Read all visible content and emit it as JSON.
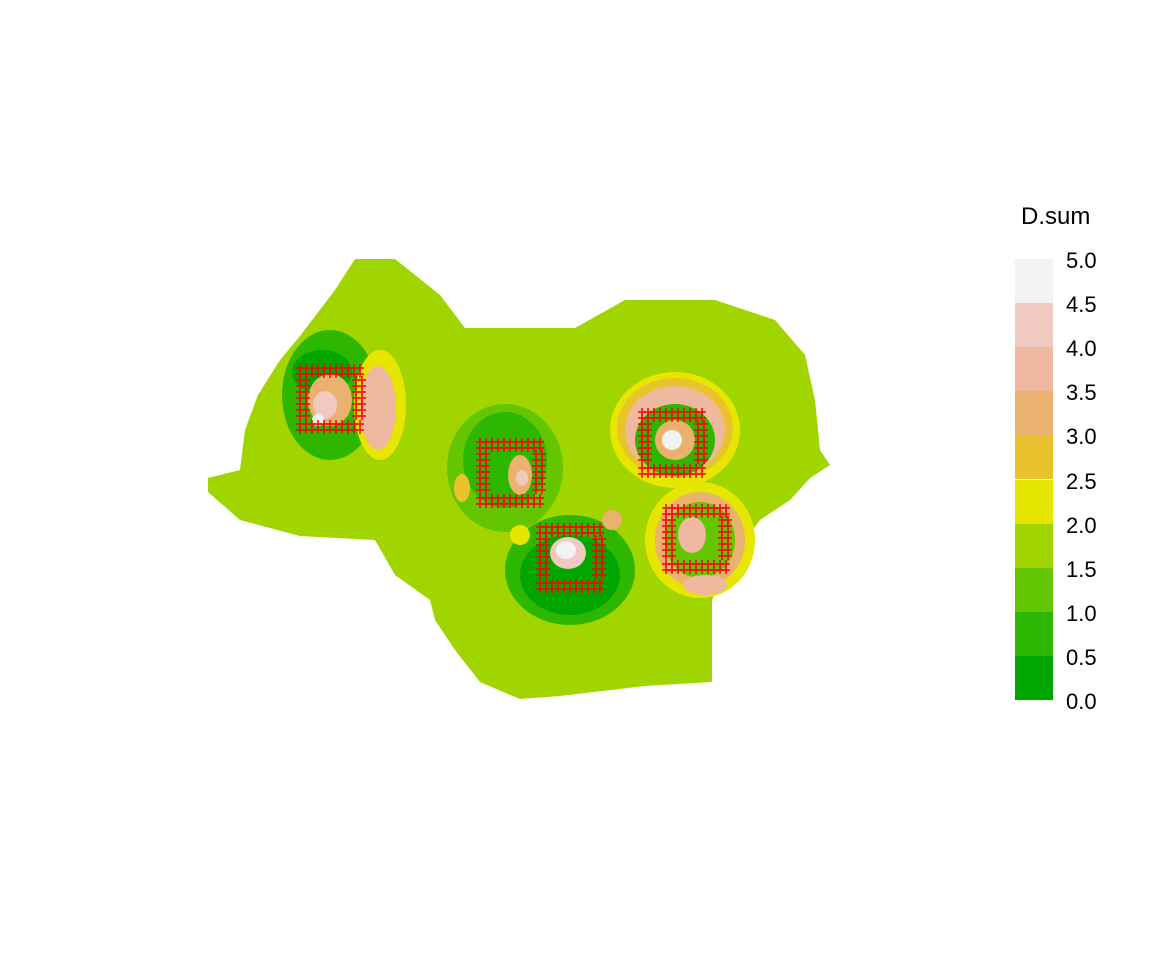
{
  "map": {
    "region_fill": "#a1d500",
    "survey_mark_color": "#ff0000"
  },
  "legend": {
    "title": "D.sum",
    "breaks": [
      "5.0",
      "4.5",
      "4.0",
      "3.5",
      "3.0",
      "2.5",
      "2.0",
      "1.5",
      "1.0",
      "0.5",
      "0.0"
    ],
    "colors": [
      "#f2f2f2",
      "#f0c9c0",
      "#eeb99f",
      "#ebb16f",
      "#e8c32e",
      "#e6e600",
      "#a1d500",
      "#63c600",
      "#2db700",
      "#00a600"
    ]
  },
  "survey_grids": [
    {
      "id": "grid-1"
    },
    {
      "id": "grid-2"
    },
    {
      "id": "grid-3"
    },
    {
      "id": "grid-4"
    },
    {
      "id": "grid-5"
    }
  ]
}
